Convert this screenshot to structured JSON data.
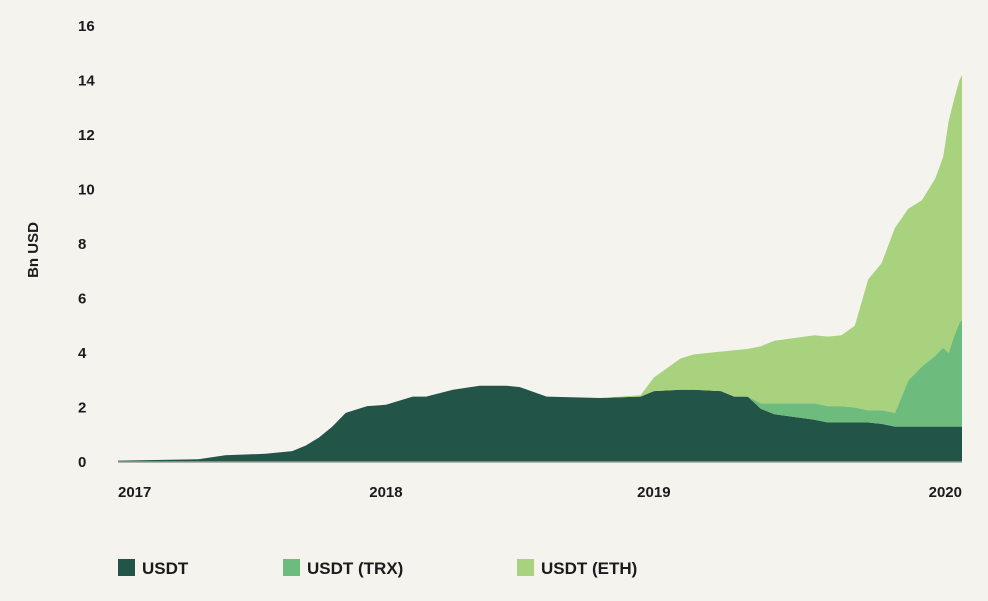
{
  "chart_data": {
    "type": "area",
    "stacked": true,
    "ylabel": "Bn USD",
    "xlabel": "",
    "x_ticks": [
      "2017",
      "2018",
      "2019",
      "2020"
    ],
    "y_ticks": [
      "0",
      "2",
      "4",
      "6",
      "8",
      "10",
      "12",
      "14",
      "16"
    ],
    "ylim": [
      0,
      16
    ],
    "xlim": [
      2017.0,
      2020.15
    ],
    "grid": false,
    "legend_position": "bottom",
    "x": [
      2017.0,
      2017.3,
      2017.4,
      2017.55,
      2017.65,
      2017.7,
      2017.75,
      2017.8,
      2017.85,
      2017.93,
      2018.0,
      2018.1,
      2018.15,
      2018.25,
      2018.35,
      2018.45,
      2018.5,
      2018.6,
      2018.8,
      2018.95,
      2019.0,
      2019.1,
      2019.15,
      2019.25,
      2019.3,
      2019.35,
      2019.4,
      2019.45,
      2019.6,
      2019.65,
      2019.7,
      2019.75,
      2019.8,
      2019.85,
      2019.9,
      2019.95,
      2020.0,
      2020.05,
      2020.08,
      2020.1,
      2020.12,
      2020.14,
      2020.15
    ],
    "series": [
      {
        "name": "USDT",
        "color": "#235448",
        "values": [
          0.05,
          0.1,
          0.25,
          0.3,
          0.4,
          0.6,
          0.9,
          1.3,
          1.8,
          2.05,
          2.1,
          2.4,
          2.4,
          2.65,
          2.8,
          2.8,
          2.75,
          2.4,
          2.35,
          2.4,
          2.6,
          2.65,
          2.65,
          2.6,
          2.4,
          2.4,
          1.95,
          1.75,
          1.55,
          1.45,
          1.45,
          1.45,
          1.45,
          1.4,
          1.3,
          1.3,
          1.3,
          1.3,
          1.3,
          1.3,
          1.3,
          1.3,
          1.3
        ]
      },
      {
        "name": "USDT (TRX)",
        "color": "#6dbb7d",
        "values": [
          0,
          0,
          0,
          0,
          0,
          0,
          0,
          0,
          0,
          0,
          0,
          0,
          0,
          0,
          0,
          0,
          0,
          0,
          0,
          0,
          0,
          0,
          0,
          0,
          0,
          0,
          0.2,
          0.4,
          0.6,
          0.6,
          0.6,
          0.55,
          0.45,
          0.5,
          0.5,
          1.7,
          2.2,
          2.6,
          2.9,
          2.7,
          3.3,
          3.8,
          3.9
        ]
      },
      {
        "name": "USDT (ETH)",
        "color": "#a8d27e",
        "values": [
          0,
          0,
          0,
          0,
          0,
          0,
          0,
          0,
          0,
          0,
          0,
          0,
          0,
          0,
          0,
          0,
          0,
          0,
          0,
          0.05,
          0.5,
          1.15,
          1.3,
          1.45,
          1.7,
          1.75,
          2.1,
          2.3,
          2.5,
          2.55,
          2.6,
          3.0,
          4.8,
          5.4,
          6.8,
          6.3,
          6.1,
          6.5,
          7.0,
          8.5,
          8.7,
          8.9,
          9.0
        ]
      }
    ]
  }
}
